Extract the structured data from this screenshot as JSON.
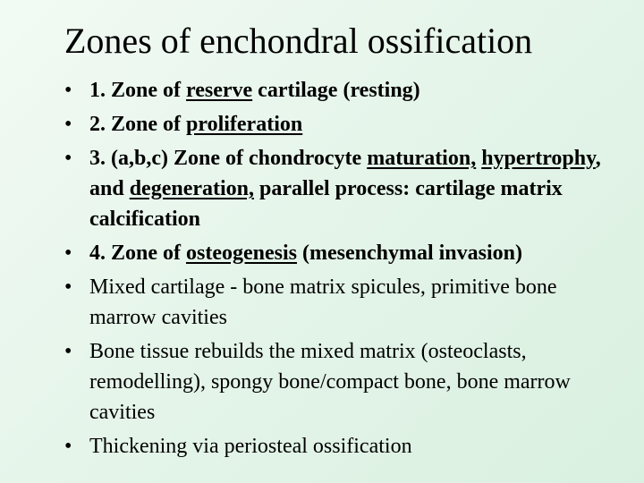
{
  "title": "Zones of enchondral ossification",
  "bullets": [
    {
      "bold": true,
      "parts": [
        {
          "text": "1. Zone of ",
          "underline": false
        },
        {
          "text": "reserve",
          "underline": true
        },
        {
          "text": " cartilage (resting)",
          "underline": false
        }
      ]
    },
    {
      "bold": true,
      "parts": [
        {
          "text": "2. Zone of ",
          "underline": false
        },
        {
          "text": "proliferation",
          "underline": true
        }
      ]
    },
    {
      "bold": true,
      "parts": [
        {
          "text": "3. (a,b,c) Zone of chondrocyte ",
          "underline": false
        },
        {
          "text": "maturation,",
          "underline": true
        },
        {
          "text": " ",
          "underline": false
        },
        {
          "text": "hypertrophy",
          "underline": true
        },
        {
          "text": ",  and ",
          "underline": false
        },
        {
          "text": "degeneration,",
          "underline": true
        },
        {
          "text": " parallel process: cartilage matrix calcification",
          "underline": false
        }
      ]
    },
    {
      "bold": true,
      "parts": [
        {
          "text": "4. Zone of ",
          "underline": false
        },
        {
          "text": "osteogenesis",
          "underline": true
        },
        {
          "text": " (mesenchymal invasion)",
          "underline": false
        }
      ]
    },
    {
      "bold": false,
      "parts": [
        {
          "text": "Mixed cartilage - bone matrix spicules, primitive bone marrow cavities",
          "underline": false
        }
      ]
    },
    {
      "bold": false,
      "parts": [
        {
          "text": "Bone tissue rebuilds the mixed matrix (osteoclasts, remodelling), spongy bone/compact bone, bone marrow cavities",
          "underline": false
        }
      ]
    },
    {
      "bold": false,
      "parts": [
        {
          "text": "Thickening via periosteal ossification",
          "underline": false
        }
      ]
    }
  ]
}
